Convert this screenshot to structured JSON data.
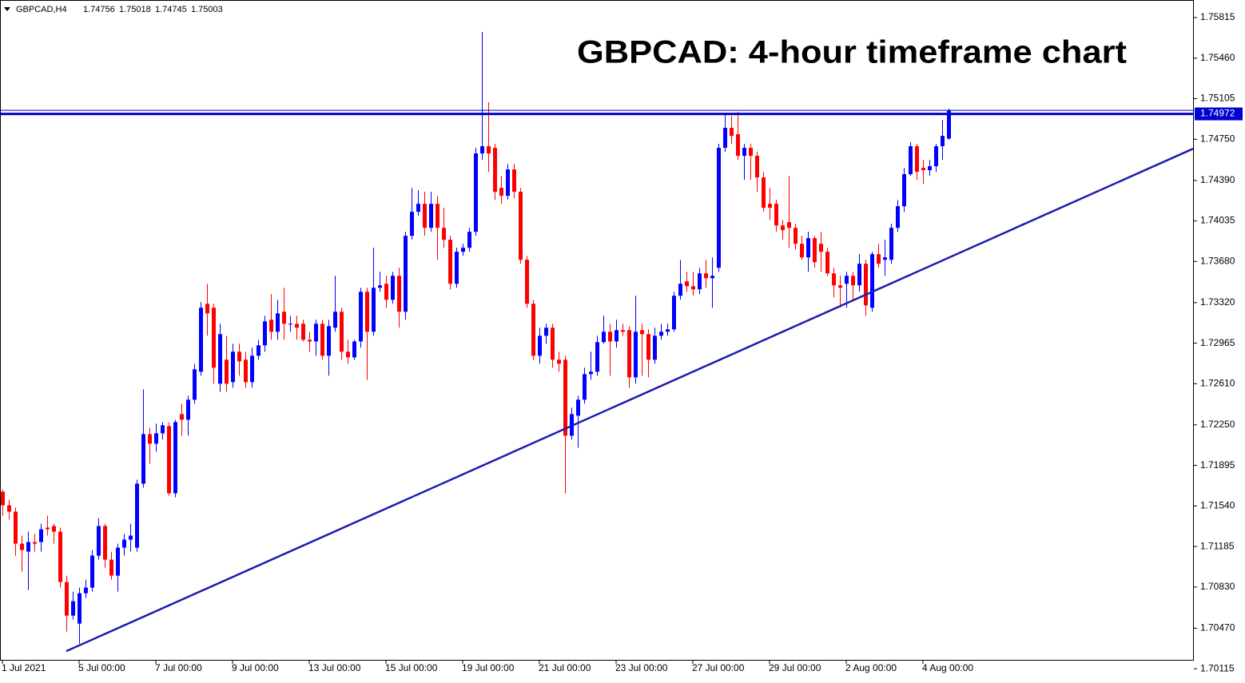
{
  "chart_data": {
    "type": "candlestick",
    "title": "GBPCAD: 4-hour timeframe chart",
    "symbol": "GBPCAD,H4",
    "categories": [
      "1 Jul 2021",
      null,
      null,
      null,
      null,
      null,
      null,
      null,
      null,
      null,
      null,
      null,
      "5 Jul 00:00",
      null,
      null,
      null,
      null,
      null,
      null,
      null,
      null,
      null,
      null,
      null,
      "7 Jul 00:00",
      null,
      null,
      null,
      null,
      null,
      null,
      null,
      null,
      null,
      null,
      null,
      "9 Jul 00:00",
      null,
      null,
      null,
      null,
      null,
      null,
      null,
      null,
      null,
      null,
      null,
      "13 Jul 00:00",
      null,
      null,
      null,
      null,
      null,
      null,
      null,
      null,
      null,
      null,
      null,
      "15 Jul 00:00",
      null,
      null,
      null,
      null,
      null,
      null,
      null,
      null,
      null,
      null,
      null,
      "19 Jul 00:00",
      null,
      null,
      null,
      null,
      null,
      null,
      null,
      null,
      null,
      null,
      null,
      "21 Jul 00:00",
      null,
      null,
      null,
      null,
      null,
      null,
      null,
      null,
      null,
      null,
      null,
      "23 Jul 00:00",
      null,
      null,
      null,
      null,
      null,
      null,
      null,
      null,
      null,
      null,
      null,
      "27 Jul 00:00",
      null,
      null,
      null,
      null,
      null,
      null,
      null,
      null,
      null,
      null,
      null,
      "29 Jul 00:00",
      null,
      null,
      null,
      null,
      null,
      null,
      null,
      null,
      null,
      null,
      null,
      "2 Aug 00:00",
      null,
      null,
      null,
      null,
      null,
      null,
      null,
      null,
      null,
      null,
      null,
      "4 Aug 00:00",
      null,
      null,
      null,
      null
    ],
    "open": [
      1.71665,
      1.71546,
      1.7149,
      1.7121,
      1.7114,
      1.71224,
      1.71224,
      1.7135,
      1.71364,
      1.71315,
      1.70874,
      1.7058,
      1.7051,
      1.70776,
      1.70825,
      1.71105,
      1.71364,
      1.7107,
      1.7093,
      1.71175,
      1.71245,
      1.71175,
      1.71735,
      1.72169,
      1.72085,
      1.72176,
      1.72239,
      1.71651,
      1.72344,
      1.72295,
      1.7247,
      1.72715,
      1.7331,
      1.73275,
      1.7261,
      1.7282,
      1.72624,
      1.7289,
      1.7282,
      1.72624,
      1.72855,
      1.72946,
      1.7317,
      1.73065,
      1.7324,
      1.73135,
      1.73135,
      1.73135,
      1.72995,
      1.7298,
      1.73135,
      1.72855,
      1.731,
      1.7324,
      1.7289,
      1.72841,
      1.7298,
      1.73415,
      1.73065,
      1.7345,
      1.73485,
      1.73345,
      1.73555,
      1.7324,
      1.73905,
      1.74115,
      1.74185,
      1.73975,
      1.74185,
      1.73975,
      1.7387,
      1.73485,
      1.73765,
      1.738,
      1.7394,
      1.74626,
      1.74689,
      1.74675,
      1.74325,
      1.74255,
      1.74486,
      1.7429,
      1.73695,
      1.7331,
      1.72855,
      1.7303,
      1.731,
      1.7282,
      1.7282,
      1.72155,
      1.7233,
      1.7247,
      1.72694,
      1.72715,
      1.72974,
      1.73065,
      1.7298,
      1.73079,
      1.73079,
      1.72666,
      1.73079,
      1.73044,
      1.7282,
      1.7303,
      1.73065,
      1.73086,
      1.7338,
      1.73506,
      1.73464,
      1.73436,
      1.73576,
      1.73534,
      1.73625,
      1.74675,
      1.7485,
      1.74794,
      1.74605,
      1.74675,
      1.74605,
      1.74416,
      1.74185,
      1.74185,
      1.73996,
      1.74024,
      1.73975,
      1.73835,
      1.73716,
      1.73884,
      1.73835,
      1.73765,
      1.73576,
      1.73471,
      1.73485,
      1.73555,
      1.73471,
      1.7366,
      1.73275,
      1.73744,
      1.73695,
      1.73695,
      1.73975,
      1.74164,
      1.74444,
      1.74689,
      1.745,
      1.74479,
      1.74514,
      1.74689,
      1.74756
    ],
    "high": [
      1.71686,
      1.71595,
      1.71525,
      1.7128,
      1.71315,
      1.71294,
      1.71385,
      1.71455,
      1.71385,
      1.7135,
      1.7093,
      1.7079,
      1.70825,
      1.70895,
      1.71154,
      1.71434,
      1.71385,
      1.7114,
      1.7121,
      1.71294,
      1.71385,
      1.7177,
      1.72561,
      1.72225,
      1.7226,
      1.72274,
      1.72274,
      1.72295,
      1.72435,
      1.72505,
      1.72785,
      1.73324,
      1.73485,
      1.7331,
      1.73135,
      1.7303,
      1.7296,
      1.7296,
      1.7289,
      1.72925,
      1.72995,
      1.73205,
      1.73394,
      1.73345,
      1.7345,
      1.73205,
      1.73205,
      1.7317,
      1.73065,
      1.7317,
      1.7317,
      1.7317,
      1.73555,
      1.73275,
      1.72995,
      1.72995,
      1.7345,
      1.7345,
      1.738,
      1.7359,
      1.73555,
      1.7359,
      1.73625,
      1.7394,
      1.74325,
      1.74304,
      1.7429,
      1.7429,
      1.74255,
      1.7415,
      1.73905,
      1.738,
      1.73835,
      1.73975,
      1.74675,
      1.7569,
      1.75074,
      1.7471,
      1.7443,
      1.74535,
      1.74535,
      1.74325,
      1.7373,
      1.73345,
      1.731,
      1.73135,
      1.73135,
      1.7289,
      1.72855,
      1.724,
      1.72505,
      1.7275,
      1.7289,
      1.7303,
      1.73205,
      1.73135,
      1.7317,
      1.73135,
      1.73114,
      1.7338,
      1.73135,
      1.73086,
      1.731,
      1.73135,
      1.73135,
      1.73415,
      1.73695,
      1.7359,
      1.7359,
      1.73625,
      1.73695,
      1.73716,
      1.7471,
      1.74976,
      1.74955,
      1.7499,
      1.7471,
      1.7471,
      1.7464,
      1.74465,
      1.74325,
      1.7422,
      1.74045,
      1.7443,
      1.7401,
      1.73905,
      1.7394,
      1.73905,
      1.7394,
      1.738,
      1.73625,
      1.73555,
      1.7359,
      1.7359,
      1.73744,
      1.73695,
      1.73765,
      1.73835,
      1.7387,
      1.7401,
      1.7422,
      1.745,
      1.74724,
      1.7471,
      1.7457,
      1.7457,
      1.7471,
      1.7492,
      1.75018
    ],
    "low": [
      1.71455,
      1.7142,
      1.71105,
      1.70965,
      1.70804,
      1.7114,
      1.7114,
      1.7128,
      1.7121,
      1.70825,
      1.7044,
      1.70545,
      1.70335,
      1.70734,
      1.7079,
      1.7107,
      1.71,
      1.70895,
      1.7079,
      1.71105,
      1.7114,
      1.7114,
      1.717,
      1.7191,
      1.72015,
      1.7212,
      1.7163,
      1.71616,
      1.72155,
      1.72155,
      1.72435,
      1.7268,
      1.7303,
      1.7261,
      1.7254,
      1.7254,
      1.72575,
      1.7268,
      1.72575,
      1.72575,
      1.7282,
      1.7289,
      1.72995,
      1.72995,
      1.72995,
      1.73065,
      1.72995,
      1.7298,
      1.7289,
      1.72855,
      1.7282,
      1.7268,
      1.73065,
      1.7282,
      1.72785,
      1.7282,
      1.72925,
      1.72645,
      1.7303,
      1.73415,
      1.73275,
      1.7331,
      1.731,
      1.7317,
      1.7387,
      1.7408,
      1.73905,
      1.7394,
      1.73695,
      1.738,
      1.73436,
      1.7345,
      1.7373,
      1.73765,
      1.73905,
      1.7457,
      1.74465,
      1.7422,
      1.74185,
      1.7422,
      1.74234,
      1.7366,
      1.73275,
      1.7282,
      1.72785,
      1.7296,
      1.7275,
      1.72715,
      1.71651,
      1.7212,
      1.7205,
      1.72435,
      1.72645,
      1.7268,
      1.7296,
      1.7268,
      1.72925,
      1.7303,
      1.72575,
      1.7261,
      1.7268,
      1.72666,
      1.72785,
      1.72995,
      1.7303,
      1.73065,
      1.73345,
      1.73415,
      1.7338,
      1.73394,
      1.7345,
      1.73275,
      1.7359,
      1.7464,
      1.7471,
      1.7457,
      1.74395,
      1.74395,
      1.7429,
      1.74115,
      1.74045,
      1.7394,
      1.7387,
      1.738,
      1.73786,
      1.73695,
      1.7359,
      1.73625,
      1.7359,
      1.73555,
      1.73366,
      1.73275,
      1.73275,
      1.73345,
      1.73415,
      1.73205,
      1.7324,
      1.73625,
      1.73555,
      1.7366,
      1.7394,
      1.74115,
      1.7443,
      1.74395,
      1.7436,
      1.7443,
      1.74465,
      1.7457,
      1.74745
    ],
    "close": [
      1.71546,
      1.7149,
      1.7121,
      1.71154,
      1.71224,
      1.7121,
      1.71336,
      1.71336,
      1.71315,
      1.70874,
      1.7058,
      1.70706,
      1.70776,
      1.70825,
      1.71105,
      1.71364,
      1.7107,
      1.7093,
      1.71175,
      1.71245,
      1.7128,
      1.71735,
      1.72169,
      1.72085,
      1.72176,
      1.72246,
      1.71651,
      1.72274,
      1.72295,
      1.7247,
      1.72736,
      1.73275,
      1.73226,
      1.7275,
      1.73044,
      1.7261,
      1.7289,
      1.72806,
      1.72624,
      1.72855,
      1.72946,
      1.73156,
      1.73065,
      1.73226,
      1.73135,
      1.73135,
      1.731,
      1.72995,
      1.7298,
      1.73135,
      1.72855,
      1.73114,
      1.7324,
      1.7289,
      1.72841,
      1.7298,
      1.73415,
      1.73065,
      1.7345,
      1.73471,
      1.73345,
      1.73555,
      1.7324,
      1.73905,
      1.74115,
      1.74185,
      1.73975,
      1.74185,
      1.73975,
      1.7387,
      1.73485,
      1.73765,
      1.738,
      1.7394,
      1.74626,
      1.74689,
      1.74626,
      1.7429,
      1.74255,
      1.74486,
      1.7429,
      1.73695,
      1.7331,
      1.72855,
      1.7303,
      1.731,
      1.7282,
      1.72785,
      1.72155,
      1.72344,
      1.7247,
      1.72694,
      1.72715,
      1.72974,
      1.73065,
      1.7298,
      1.73079,
      1.73065,
      1.72666,
      1.73065,
      1.73044,
      1.7282,
      1.7303,
      1.73065,
      1.73086,
      1.7338,
      1.73485,
      1.73464,
      1.73436,
      1.73576,
      1.73534,
      1.73555,
      1.74675,
      1.7485,
      1.7478,
      1.74605,
      1.74675,
      1.74605,
      1.74416,
      1.7415,
      1.7415,
      1.73996,
      1.73954,
      1.73975,
      1.73835,
      1.73716,
      1.73884,
      1.73674,
      1.73765,
      1.73576,
      1.73471,
      1.7345,
      1.73555,
      1.73471,
      1.7366,
      1.73296,
      1.73744,
      1.7366,
      1.73716,
      1.73975,
      1.74164,
      1.74444,
      1.74689,
      1.74465,
      1.74479,
      1.74514,
      1.74689,
      1.7478,
      1.75003
    ],
    "up_color": "#0000ff",
    "down_color": "#ff0000",
    "ylim": [
      1.70193,
      1.75969
    ],
    "yticks": [
      1.75815,
      {
        "value": 1.7546,
        "label": "1.75460"
      },
      1.75105,
      {
        "value": 1.7475,
        "label": "1.74750"
      },
      {
        "value": 1.7439,
        "label": "1.74390"
      },
      1.74035,
      {
        "value": 1.7368,
        "label": "1.73680"
      },
      {
        "value": 1.7332,
        "label": "1.73320"
      },
      1.72965,
      {
        "value": 1.7261,
        "label": "1.72610"
      },
      {
        "value": 1.7225,
        "label": "1.72250"
      },
      1.71895,
      {
        "value": 1.7154,
        "label": "1.71540"
      },
      1.71185,
      {
        "value": 1.7083,
        "label": "1.70830"
      },
      {
        "value": 1.7047,
        "label": "1.70470"
      },
      1.70115
    ],
    "trendline": {
      "start": 1.70269,
      "end": 1.74667,
      "color": "#1c1cb0"
    },
    "resistance": 1.74972,
    "resistance_color": "#0000d0"
  }
}
